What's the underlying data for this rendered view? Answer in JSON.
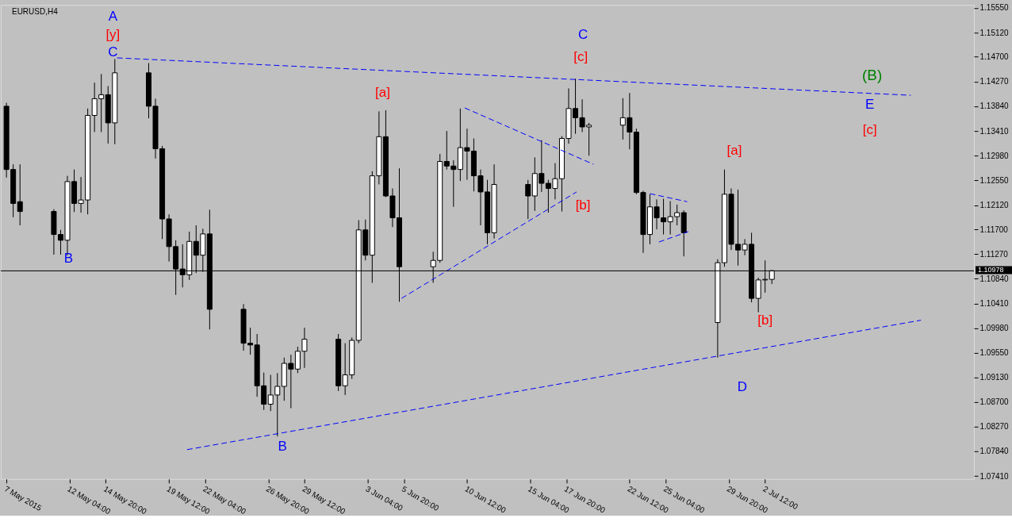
{
  "chart_data": {
    "type": "candlestick",
    "title": "EURUSD,H4",
    "x": [
      "2015-05-07T12:00",
      "2015-05-08T00:00",
      "2015-05-08T12:00",
      "2015-05-11T00:00",
      "2015-05-11T12:00",
      "2015-05-12T00:00",
      "2015-05-12T12:00",
      "2015-05-13T00:00",
      "2015-05-13T12:00",
      "2015-05-14T00:00",
      "2015-05-14T12:00",
      "2015-05-15T00:00",
      "2015-05-15T12:00",
      "2015-05-18T00:00",
      "2015-05-18T12:00",
      "2015-05-19T00:00",
      "2015-05-19T12:00",
      "2015-05-20T00:00",
      "2015-05-20T12:00",
      "2015-05-21T00:00",
      "2015-05-21T12:00",
      "2015-05-22T00:00",
      "2015-05-22T12:00",
      "2015-05-25T00:00",
      "2015-05-25T12:00",
      "2015-05-26T00:00",
      "2015-05-26T12:00",
      "2015-05-27T00:00",
      "2015-05-27T12:00",
      "2015-05-28T00:00",
      "2015-05-28T12:00",
      "2015-05-29T00:00",
      "2015-05-29T12:00",
      "2015-06-01T00:00",
      "2015-06-01T12:00",
      "2015-06-02T00:00",
      "2015-06-02T12:00",
      "2015-06-03T00:00",
      "2015-06-03T12:00",
      "2015-06-04T00:00",
      "2015-06-04T12:00",
      "2015-06-05T00:00",
      "2015-06-05T12:00",
      "2015-06-08T00:00",
      "2015-06-08T12:00",
      "2015-06-09T00:00",
      "2015-06-09T12:00",
      "2015-06-10T00:00",
      "2015-06-10T12:00",
      "2015-06-11T00:00",
      "2015-06-11T12:00",
      "2015-06-12T00:00",
      "2015-06-12T12:00",
      "2015-06-15T00:00",
      "2015-06-15T12:00",
      "2015-06-16T00:00",
      "2015-06-16T12:00",
      "2015-06-17T00:00",
      "2015-06-17T12:00",
      "2015-06-18T00:00",
      "2015-06-18T12:00",
      "2015-06-19T00:00",
      "2015-06-19T12:00",
      "2015-06-22T00:00",
      "2015-06-22T12:00",
      "2015-06-23T00:00",
      "2015-06-23T12:00",
      "2015-06-24T00:00",
      "2015-06-24T12:00",
      "2015-06-25T00:00",
      "2015-06-25T12:00",
      "2015-06-26T00:00",
      "2015-06-26T12:00",
      "2015-06-29T00:00",
      "2015-06-29T12:00",
      "2015-06-30T00:00",
      "2015-06-30T12:00",
      "2015-07-01T00:00",
      "2015-07-01T12:00",
      "2015-07-02T00:00",
      "2015-07-02T12:00",
      "2015-07-03T00:00"
    ],
    "ohlc": [
      [
        1.1384,
        1.139,
        1.126,
        1.1274
      ],
      [
        1.1274,
        1.1283,
        1.1191,
        1.1215
      ],
      [
        1.1218,
        1.1283,
        1.1177,
        1.1201
      ],
      [
        1.1201,
        1.1205,
        1.1126,
        1.1161
      ],
      [
        1.1161,
        1.1169,
        1.1126,
        1.1151
      ],
      [
        1.1151,
        1.1263,
        1.1125,
        1.1253
      ],
      [
        1.1253,
        1.1274,
        1.12,
        1.1215
      ],
      [
        1.1215,
        1.1261,
        1.1199,
        1.1221
      ],
      [
        1.1221,
        1.138,
        1.1196,
        1.1368
      ],
      [
        1.1368,
        1.1425,
        1.1339,
        1.1397
      ],
      [
        1.1397,
        1.144,
        1.1339,
        1.1404
      ],
      [
        1.1404,
        1.1419,
        1.1319,
        1.1355
      ],
      [
        1.1355,
        1.1466,
        1.1318,
        1.1442
      ],
      [
        1.1442,
        1.1459,
        1.1363,
        1.1384
      ],
      [
        1.1384,
        1.1397,
        1.1293,
        1.131
      ],
      [
        1.131,
        1.1315,
        1.1153,
        1.1188
      ],
      [
        1.1188,
        1.1196,
        1.1114,
        1.114
      ],
      [
        1.114,
        1.1151,
        1.1056,
        1.1101
      ],
      [
        1.1101,
        1.1144,
        1.1069,
        1.1091
      ],
      [
        1.1091,
        1.1166,
        1.1082,
        1.1149
      ],
      [
        1.1149,
        1.1177,
        1.1094,
        1.1125
      ],
      [
        1.1125,
        1.1171,
        1.1096,
        1.1162
      ],
      [
        1.1162,
        1.1204,
        1.0996,
        1.1031
      ],
      [
        1.1031,
        1.104,
        1.0959,
        1.0972
      ],
      [
        1.0972,
        1.0999,
        1.0952,
        1.0969
      ],
      [
        1.0969,
        1.0988,
        1.0879,
        1.0898
      ],
      [
        1.0898,
        1.0921,
        1.0856,
        1.0866
      ],
      [
        1.0866,
        1.0917,
        1.0854,
        1.0882
      ],
      [
        1.0882,
        1.092,
        1.081,
        1.0897
      ],
      [
        1.0897,
        1.0947,
        1.0872,
        1.0937
      ],
      [
        1.0937,
        1.0952,
        1.0859,
        1.0927
      ],
      [
        1.0927,
        1.0966,
        1.092,
        1.0958
      ],
      [
        1.0958,
        1.0999,
        1.0929,
        1.0979
      ],
      [
        1.0979,
        1.0988,
        1.0889,
        1.0898
      ],
      [
        1.0898,
        1.0972,
        1.0882,
        1.0917
      ],
      [
        1.0917,
        1.0982,
        1.091,
        1.0977
      ],
      [
        1.0977,
        1.1186,
        1.0972,
        1.1169
      ],
      [
        1.1169,
        1.1187,
        1.1116,
        1.1125
      ],
      [
        1.1125,
        1.1271,
        1.1077,
        1.1263
      ],
      [
        1.1263,
        1.1375,
        1.1248,
        1.1331
      ],
      [
        1.1331,
        1.1377,
        1.1226,
        1.1228
      ],
      [
        1.1228,
        1.1241,
        1.1174,
        1.119
      ],
      [
        1.119,
        1.1276,
        1.1044,
        1.1105
      ],
      [
        1.1105,
        1.1131,
        1.1077,
        1.1116
      ],
      [
        1.1116,
        1.1301,
        1.1112,
        1.1288
      ],
      [
        1.1288,
        1.1341,
        1.1274,
        1.128
      ],
      [
        1.128,
        1.129,
        1.1209,
        1.1274
      ],
      [
        1.1274,
        1.138,
        1.1254,
        1.1312
      ],
      [
        1.1312,
        1.1345,
        1.1256,
        1.1306
      ],
      [
        1.1306,
        1.1328,
        1.1236,
        1.1263
      ],
      [
        1.1263,
        1.1274,
        1.1177,
        1.1235
      ],
      [
        1.1235,
        1.1256,
        1.1144,
        1.1164
      ],
      [
        1.1164,
        1.1283,
        1.1154,
        1.1248
      ],
      [
        1.1248,
        1.1256,
        1.1188,
        1.1228
      ],
      [
        1.1228,
        1.1295,
        1.1202,
        1.1267
      ],
      [
        1.1267,
        1.1325,
        1.1235,
        1.125
      ],
      [
        1.125,
        1.1256,
        1.1199,
        1.1241
      ],
      [
        1.1241,
        1.1285,
        1.1222,
        1.1258
      ],
      [
        1.1258,
        1.1332,
        1.1201,
        1.1328
      ],
      [
        1.1328,
        1.1415,
        1.1319,
        1.138
      ],
      [
        1.138,
        1.1432,
        1.1336,
        1.1364
      ],
      [
        1.1364,
        1.1396,
        1.1339,
        1.1348
      ],
      [
        1.1348,
        1.1355,
        1.1298,
        1.1351
      ],
      [
        1.1351,
        1.1398,
        1.1326,
        1.1364
      ],
      [
        1.1364,
        1.1407,
        1.1309,
        1.1339
      ],
      [
        1.1339,
        1.1345,
        1.1231,
        1.1234
      ],
      [
        1.1234,
        1.1237,
        1.1129,
        1.1161
      ],
      [
        1.1161,
        1.1231,
        1.1144,
        1.1209
      ],
      [
        1.1209,
        1.1222,
        1.117,
        1.119
      ],
      [
        1.119,
        1.1223,
        1.1161,
        1.1183
      ],
      [
        1.1183,
        1.1219,
        1.1161,
        1.1192
      ],
      [
        1.1192,
        1.1213,
        1.1177,
        1.1199
      ],
      [
        1.1199,
        1.1203,
        1.1123,
        1.1164
      ],
      [
        1.1008,
        1.1118,
        1.0947,
        1.1112
      ],
      [
        1.1112,
        1.1274,
        1.1105,
        1.1231
      ],
      [
        1.1231,
        1.1241,
        1.1134,
        1.1144
      ],
      [
        1.1144,
        1.1239,
        1.1107,
        1.1134
      ],
      [
        1.1134,
        1.1153,
        1.1125,
        1.1144
      ],
      [
        1.1144,
        1.1164,
        1.1043,
        1.105
      ],
      [
        1.105,
        1.1086,
        1.1026,
        1.1082
      ],
      [
        1.1082,
        1.1116,
        1.106,
        1.1083
      ],
      [
        1.1083,
        1.1099,
        1.1075,
        1.1098
      ]
    ],
    "series": [
      {
        "type": "line",
        "color": "#0000ff",
        "line_style": "dashed",
        "x": [
          "2015-05-15T16:00",
          "2015-07-13T06:00"
        ],
        "values": [
          1.1468,
          1.1403
        ]
      },
      {
        "type": "line",
        "color": "#0000ff",
        "line_style": "dashed",
        "x": [
          "2015-05-20T20:00",
          "2015-07-14T00:00"
        ],
        "values": [
          1.0787,
          1.1012
        ]
      },
      {
        "type": "line",
        "color": "#0000ff",
        "line_style": "dashed",
        "x": [
          "2015-06-10T08:00",
          "2015-06-19T20:00"
        ],
        "values": [
          1.1381,
          1.1283
        ]
      },
      {
        "type": "line",
        "color": "#0000ff",
        "line_style": "dashed",
        "x": [
          "2015-06-05T16:00",
          "2015-06-18T14:00"
        ],
        "values": [
          1.105,
          1.1235
        ]
      },
      {
        "type": "line",
        "color": "#0000ff",
        "line_style": "dashed",
        "x": [
          "2015-06-24T00:00",
          "2015-06-26T18:00"
        ],
        "values": [
          1.1232,
          1.1218
        ]
      },
      {
        "type": "line",
        "color": "#0000ff",
        "line_style": "dashed",
        "x": [
          "2015-06-24T16:00",
          "2015-06-26T20:00"
        ],
        "values": [
          1.1148,
          1.1166
        ]
      }
    ],
    "ref_lines": [
      {
        "axis": "y",
        "value": 1.10978,
        "label": "1.10978",
        "color": "#000000",
        "line_style": "solid"
      }
    ],
    "annotations": [
      "A",
      "[y]",
      "C",
      "B",
      "B",
      "[a]",
      "C",
      "[c]",
      "[b]",
      "(B)",
      "E",
      "[c]",
      "[a]",
      "[b]",
      "D"
    ],
    "xlim": [
      "2015-05-07T09:00",
      "2015-07-17T15:00"
    ],
    "xticks": [
      {
        "value": "2015-05-07T12:00",
        "label": "7 May 2015"
      },
      {
        "value": "2015-05-12T04:00",
        "label": "12 May 04:00"
      },
      {
        "value": "2015-05-14T20:00",
        "label": "14 May 20:00"
      },
      {
        "value": "2015-05-19T12:00",
        "label": "19 May 12:00"
      },
      {
        "value": "2015-05-22T04:00",
        "label": "22 May 04:00"
      },
      {
        "value": "2015-05-26T20:00",
        "label": "26 May 20:00"
      },
      {
        "value": "2015-05-29T12:00",
        "label": "29 May 12:00"
      },
      {
        "value": "2015-06-03T04:00",
        "label": "3 Jun 04:00"
      },
      {
        "value": "2015-06-05T20:00",
        "label": "5 Jun 20:00"
      },
      {
        "value": "2015-06-10T12:00",
        "label": "10 Jun 12:00"
      },
      {
        "value": "2015-06-15T04:00",
        "label": "15 Jun 04:00"
      },
      {
        "value": "2015-06-17T20:00",
        "label": "17 Jun 20:00"
      },
      {
        "value": "2015-06-22T12:00",
        "label": "22 Jun 12:00"
      },
      {
        "value": "2015-06-25T04:00",
        "label": "25 Jun 04:00"
      },
      {
        "value": "2015-06-29T20:00",
        "label": "29 Jun 20:00"
      },
      {
        "value": "2015-07-02T12:00",
        "label": "2 Jul 12:00"
      }
    ],
    "ylim": [
      1.0736,
      1.156
    ],
    "yticks": [
      {
        "value": 1.0741,
        "label": "1.07410"
      },
      {
        "value": 1.0784,
        "label": "1.07840"
      },
      {
        "value": 1.0827,
        "label": "1.08270"
      },
      {
        "value": 1.087,
        "label": "1.08700"
      },
      {
        "value": 1.0913,
        "label": "1.09130"
      },
      {
        "value": 1.0955,
        "label": "1.09550"
      },
      {
        "value": 1.0998,
        "label": "1.09980"
      },
      {
        "value": 1.1041,
        "label": "1.10410"
      },
      {
        "value": 1.1084,
        "label": "1.10840"
      },
      {
        "value": 1.1127,
        "label": "1.11270"
      },
      {
        "value": 1.117,
        "label": "1.11700"
      },
      {
        "value": 1.1212,
        "label": "1.12120"
      },
      {
        "value": 1.1255,
        "label": "1.12550"
      },
      {
        "value": 1.1298,
        "label": "1.12980"
      },
      {
        "value": 1.1341,
        "label": "1.13410"
      },
      {
        "value": 1.1384,
        "label": "1.13840"
      },
      {
        "value": 1.1427,
        "label": "1.14270"
      },
      {
        "value": 1.147,
        "label": "1.14700"
      },
      {
        "value": 1.1512,
        "label": "1.15120"
      },
      {
        "value": 1.1555,
        "label": "1.15550"
      }
    ],
    "grid": false
  }
}
